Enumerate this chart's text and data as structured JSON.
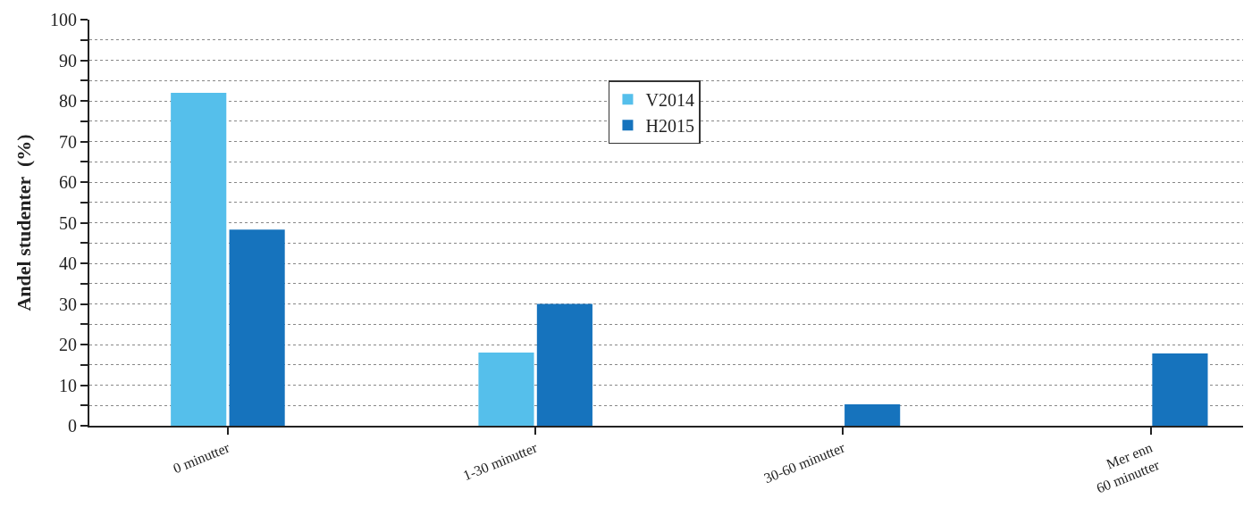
{
  "chart_data": {
    "type": "bar",
    "ylabel": "Andel studenter  (%)",
    "categories": [
      "0 minutter",
      "1-30 minutter",
      "30-60 minutter",
      "Mer enn\n60 minutter"
    ],
    "series": [
      {
        "name": "V2014",
        "color": "#55bfeb",
        "values": [
          82,
          18,
          0,
          0
        ]
      },
      {
        "name": "H2015",
        "color": "#1673bd",
        "values": [
          48.3,
          30,
          5.3,
          17.8
        ]
      }
    ],
    "ylim": [
      0,
      100
    ],
    "yticks": [
      0,
      {
        "value": 5,
        "label": null
      },
      10,
      {
        "value": 15,
        "label": null
      },
      20,
      {
        "value": 25,
        "label": null
      },
      30,
      {
        "value": 35,
        "label": null
      },
      40,
      {
        "value": 45,
        "label": null
      },
      50,
      {
        "value": 55,
        "label": null
      },
      60,
      {
        "value": 65,
        "label": null
      },
      70,
      {
        "value": 75,
        "label": null
      },
      80,
      {
        "value": 85,
        "label": null
      },
      90,
      {
        "value": 95,
        "label": null
      },
      100
    ],
    "grid": "y",
    "legend": "top"
  }
}
